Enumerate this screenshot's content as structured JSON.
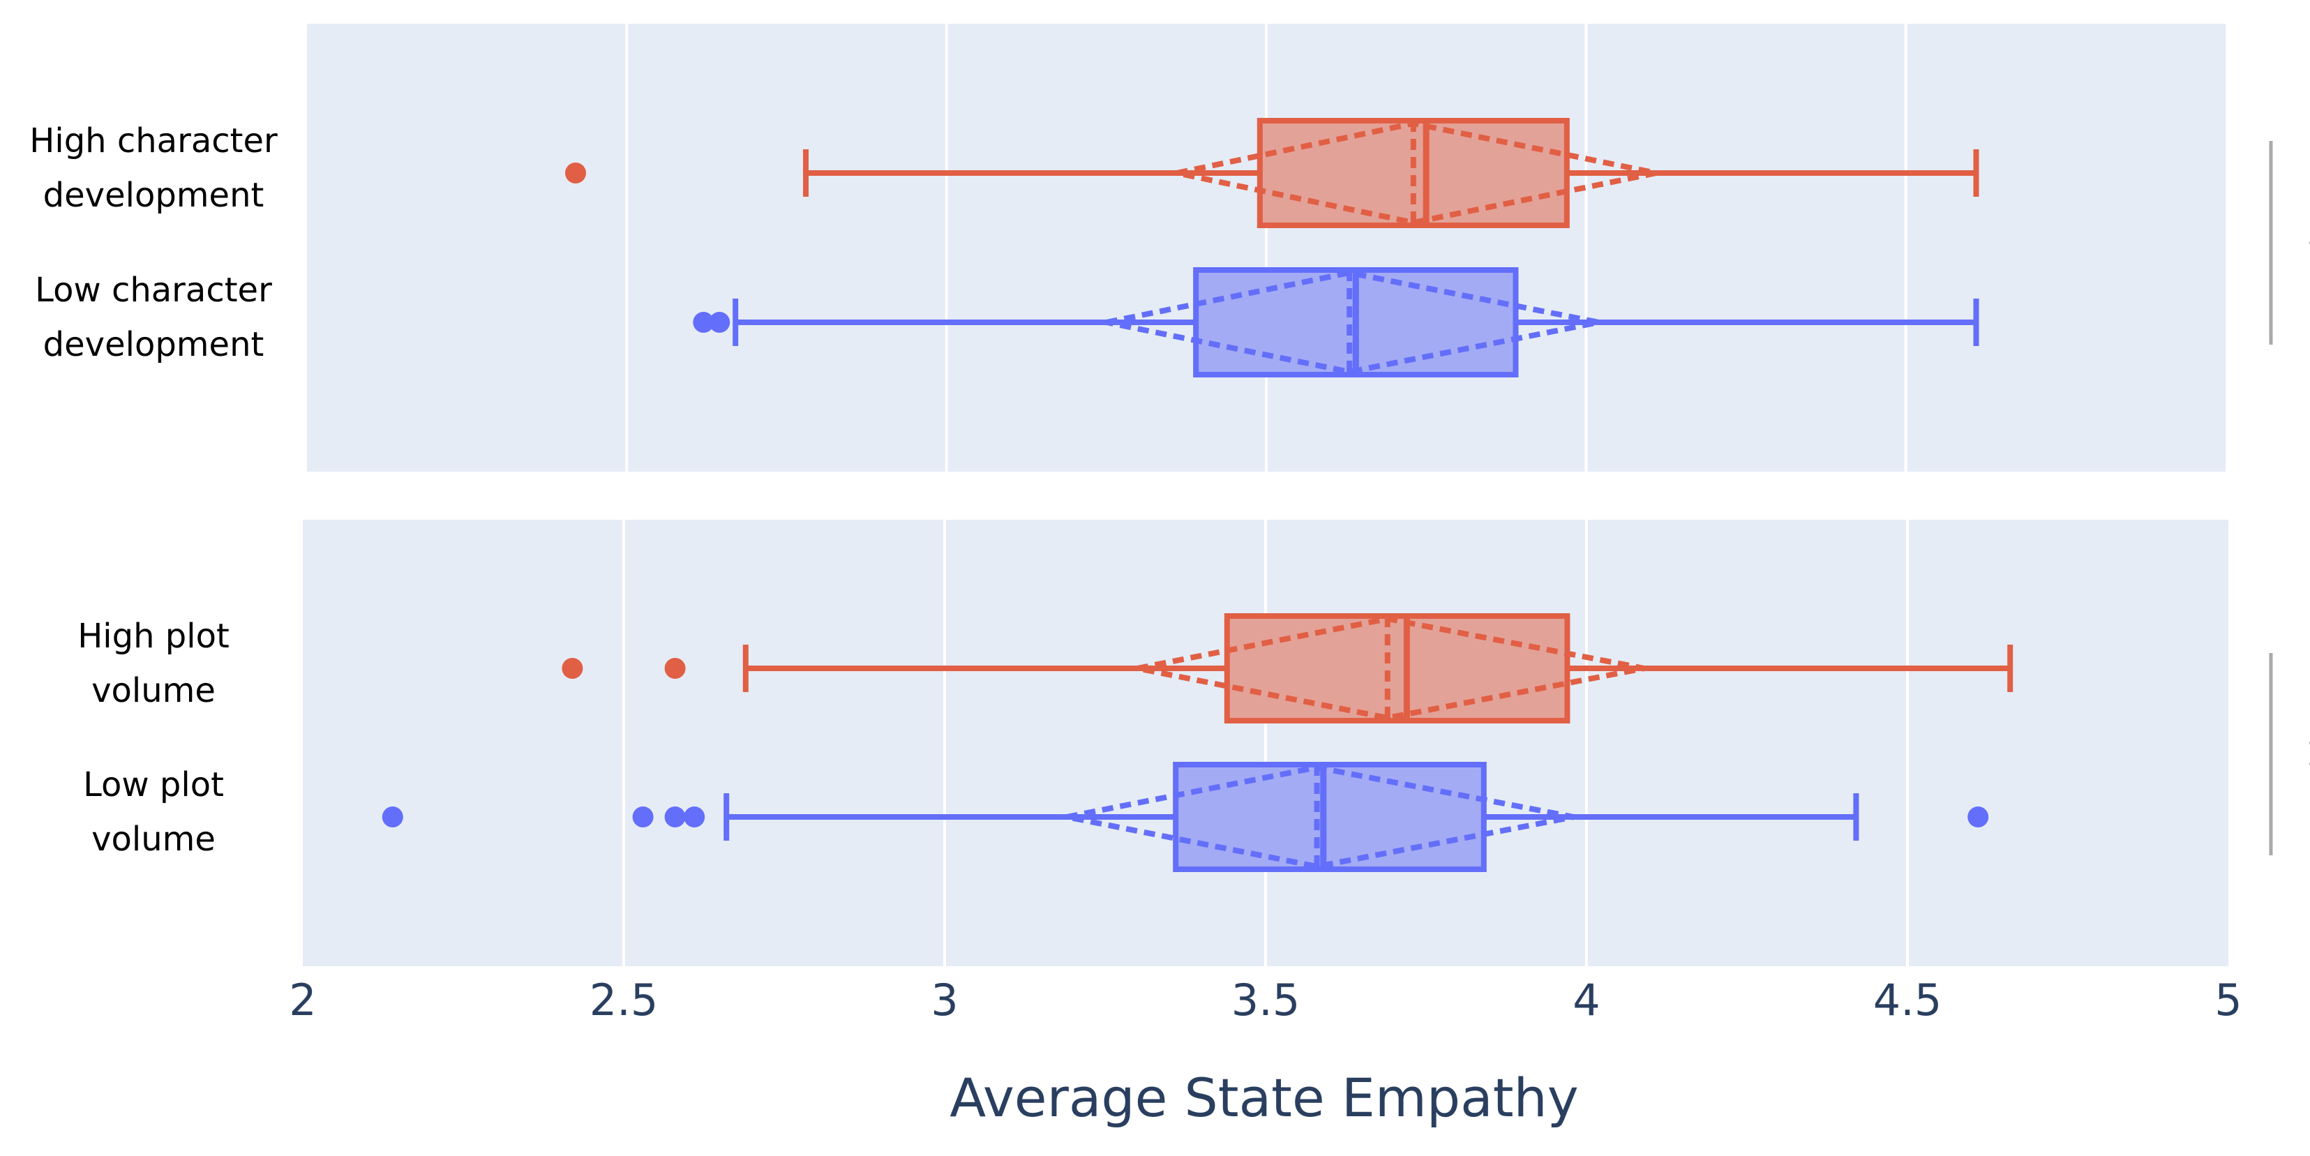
{
  "chart_data": {
    "type": "box",
    "xlabel": "Average State Empathy",
    "xlim": [
      2,
      5
    ],
    "xticks": [
      2,
      2.5,
      3,
      3.5,
      4,
      4.5,
      5
    ],
    "xtick_labels": [
      "2",
      "2.5",
      "3",
      "3.5",
      "4",
      "4.5",
      "5"
    ],
    "grid": true,
    "colors": {
      "high": "#e15f44",
      "high_fill": "#e3a298",
      "low": "#636efa",
      "low_fill": "#a3abf4",
      "plot_bg": "#e5ecf6",
      "significance": "#a9a9a9"
    },
    "panels": [
      {
        "significance": "*",
        "boxes": [
          {
            "group": "high",
            "label_lines": [
              "High character",
              "development"
            ],
            "q1": 3.49,
            "median": 3.75,
            "q3": 3.97,
            "mean": 3.73,
            "notch_low": 3.36,
            "notch_high": 4.11,
            "whisker_low": 2.78,
            "whisker_high": 4.61,
            "outliers": [
              2.42
            ]
          },
          {
            "group": "low",
            "label_lines": [
              "Low character",
              "development"
            ],
            "q1": 3.39,
            "median": 3.64,
            "q3": 3.89,
            "mean": 3.63,
            "notch_low": 3.25,
            "notch_high": 4.02,
            "whisker_low": 2.67,
            "whisker_high": 4.61,
            "outliers": [
              2.62,
              2.645
            ]
          }
        ]
      },
      {
        "significance": "**",
        "boxes": [
          {
            "group": "high",
            "label_lines": [
              "High plot",
              "volume"
            ],
            "q1": 3.44,
            "median": 3.72,
            "q3": 3.97,
            "mean": 3.69,
            "notch_low": 3.3,
            "notch_high": 4.09,
            "whisker_low": 2.69,
            "whisker_high": 4.66,
            "outliers": [
              2.42,
              2.58
            ]
          },
          {
            "group": "low",
            "label_lines": [
              "Low plot",
              "volume"
            ],
            "q1": 3.36,
            "median": 3.59,
            "q3": 3.84,
            "mean": 3.58,
            "notch_low": 3.19,
            "notch_high": 3.98,
            "whisker_low": 2.66,
            "whisker_high": 4.42,
            "outliers": [
              2.14,
              2.53,
              2.58,
              2.61,
              4.61
            ]
          }
        ]
      }
    ]
  }
}
